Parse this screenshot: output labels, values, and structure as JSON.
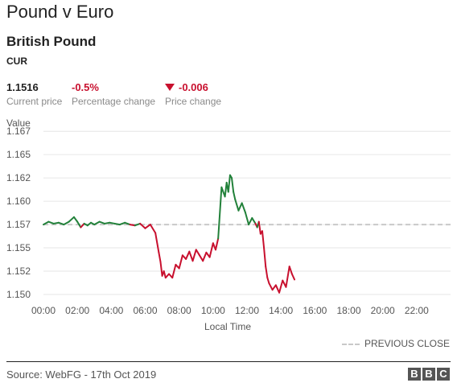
{
  "header": {
    "title": "Pound v Euro",
    "instrument_name": "British Pound",
    "instrument_code": "CUR"
  },
  "stats": {
    "current_price": "1.1516",
    "current_price_label": "Current price",
    "percentage_change": "-0.5%",
    "percentage_change_label": "Percentage change",
    "price_change": "-0.006",
    "price_change_label": "Price change",
    "price_change_icon": "down-triangle-icon"
  },
  "legend": {
    "previous_close_label": "PREVIOUS CLOSE"
  },
  "footer": {
    "source": "Source: WebFG - 17th Oct 2019",
    "logo_letters": [
      "B",
      "B",
      "C"
    ]
  },
  "colors": {
    "up": "#22813a",
    "down": "#c8102e",
    "previous_close": "#c9c9c9",
    "grid": "#e6e6e6"
  },
  "chart_data": {
    "type": "line",
    "ylabel": "Value",
    "xlabel": "Local Time",
    "xlim": [
      0,
      24
    ],
    "ylim": [
      1.15,
      1.167
    ],
    "x_ticks": [
      0,
      2,
      4,
      6,
      8,
      10,
      12,
      14,
      16,
      18,
      20,
      22
    ],
    "x_tick_labels": [
      "00:00",
      "02:00",
      "04:00",
      "06:00",
      "08:00",
      "10:00",
      "12:00",
      "14:00",
      "16:00",
      "18:00",
      "20:00",
      "22:00"
    ],
    "y_ticks": [
      1.15,
      1.1525,
      1.155,
      1.1575,
      1.16,
      1.1625,
      1.165,
      1.1675
    ],
    "y_tick_labels": [
      "1.150",
      "1.152",
      "1.155",
      "1.157",
      "1.160",
      "1.162",
      "1.165",
      "1.167"
    ],
    "grid": true,
    "previous_close": 1.1575,
    "legend_position": "bottom-right",
    "series": [
      {
        "x": [
          0,
          0.3,
          0.6,
          0.9,
          1.2,
          1.5,
          1.8,
          2.0,
          2.2,
          2.4,
          2.6,
          2.8,
          3.0,
          3.3,
          3.6,
          3.9,
          4.2,
          4.5,
          4.8,
          5.1,
          5.4,
          5.7,
          6.0,
          6.3,
          6.6,
          6.8,
          6.9,
          7.0,
          7.1,
          7.2,
          7.4,
          7.6,
          7.8,
          8.0,
          8.2,
          8.4,
          8.6,
          8.8,
          9.0,
          9.2,
          9.4,
          9.6,
          9.8,
          10.0,
          10.15,
          10.3,
          10.5,
          10.7,
          10.8,
          10.9,
          11.0,
          11.1,
          11.2,
          11.3,
          11.5,
          11.7,
          11.9,
          12.1,
          12.3,
          12.5,
          12.6,
          12.7,
          12.8,
          12.9,
          13.0,
          13.1,
          13.2,
          13.3,
          13.5,
          13.7,
          13.9,
          14.1,
          14.3,
          14.5,
          14.65,
          14.8
        ],
        "y": [
          1.1575,
          1.1578,
          1.1576,
          1.1577,
          1.1575,
          1.1578,
          1.1583,
          1.1578,
          1.1572,
          1.1576,
          1.1574,
          1.1577,
          1.1575,
          1.1578,
          1.1576,
          1.1577,
          1.1576,
          1.1575,
          1.1577,
          1.1575,
          1.1574,
          1.1576,
          1.1571,
          1.1575,
          1.1566,
          1.1545,
          1.1535,
          1.152,
          1.1525,
          1.1518,
          1.1522,
          1.1518,
          1.1532,
          1.1528,
          1.1542,
          1.1538,
          1.1546,
          1.1536,
          1.1548,
          1.1542,
          1.1536,
          1.1545,
          1.154,
          1.1555,
          1.1548,
          1.156,
          1.1615,
          1.1605,
          1.162,
          1.161,
          1.1628,
          1.1625,
          1.161,
          1.1602,
          1.159,
          1.1598,
          1.1588,
          1.1575,
          1.1582,
          1.1576,
          1.1572,
          1.1578,
          1.1565,
          1.1568,
          1.155,
          1.153,
          1.1518,
          1.1512,
          1.1505,
          1.151,
          1.1502,
          1.1515,
          1.1508,
          1.153,
          1.1522,
          1.1516
        ]
      }
    ]
  }
}
